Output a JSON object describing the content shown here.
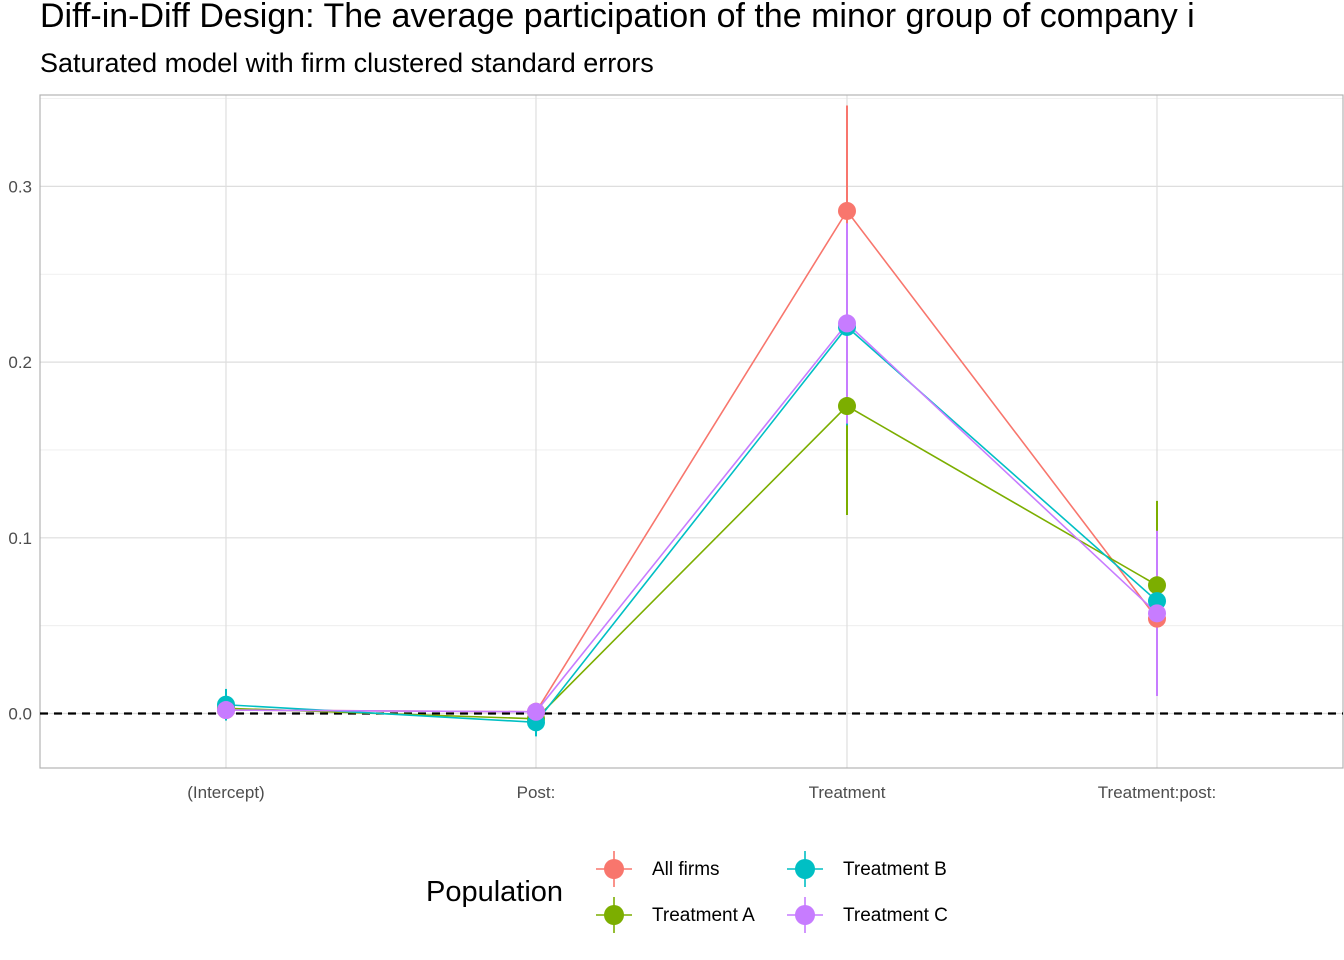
{
  "chart_data": {
    "type": "line",
    "title": "Diff-in-Diff Design: The average participation of the minor group of company i",
    "subtitle": "Saturated model with firm clustered standard errors",
    "xlabel": "",
    "ylabel": "",
    "categories": [
      "(Intercept)",
      "Post:",
      "Treatment",
      "Treatment:post:"
    ],
    "ylim": [
      -0.031,
      0.352
    ],
    "yticks": [
      0.0,
      0.1,
      0.2,
      0.3
    ],
    "ytick_labels": [
      "0.0",
      "0.1",
      "0.2",
      "0.3"
    ],
    "grid": true,
    "reference_line": {
      "y": 0,
      "style": "dashed"
    },
    "legend": {
      "title": "Population",
      "position": "bottom"
    },
    "series": [
      {
        "name": "All firms",
        "color": "#F8766D",
        "values": [
          0.002,
          0.001,
          0.286,
          0.054
        ],
        "ci_low": [
          0.0,
          -0.002,
          0.226,
          0.032
        ],
        "ci_high": [
          0.004,
          0.004,
          0.346,
          0.076
        ]
      },
      {
        "name": "Treatment A",
        "color": "#7CAE00",
        "values": [
          0.003,
          -0.003,
          0.175,
          0.073
        ],
        "ci_low": [
          0.0,
          -0.008,
          0.113,
          0.025
        ],
        "ci_high": [
          0.006,
          0.002,
          0.237,
          0.121
        ]
      },
      {
        "name": "Treatment B",
        "color": "#00BFC4",
        "values": [
          0.005,
          -0.005,
          0.22,
          0.064
        ],
        "ci_low": [
          -0.004,
          -0.013,
          0.164,
          0.026
        ],
        "ci_high": [
          0.014,
          0.003,
          0.276,
          0.102
        ]
      },
      {
        "name": "Treatment C",
        "color": "#C77CFF",
        "values": [
          0.002,
          0.001,
          0.222,
          0.057
        ],
        "ci_low": [
          -0.001,
          -0.002,
          0.165,
          0.01
        ],
        "ci_high": [
          0.005,
          0.004,
          0.279,
          0.104
        ]
      }
    ]
  }
}
